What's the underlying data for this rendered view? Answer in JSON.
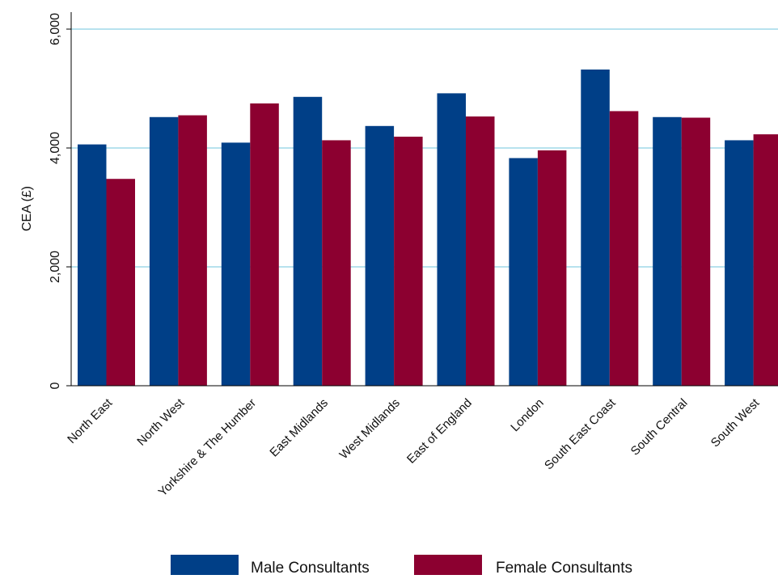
{
  "chart_data": {
    "type": "bar",
    "title": "",
    "xlabel": "",
    "ylabel": "CEA (£)",
    "ylim": [
      0,
      6000
    ],
    "yticks": [
      0,
      2000,
      4000,
      6000
    ],
    "ytick_labels": [
      "0",
      "2,000",
      "4,000",
      "6,000"
    ],
    "grid": true,
    "legend_position": "bottom",
    "categories": [
      "North East",
      "North West",
      "Yorkshire & The Humber",
      "East Midlands",
      "West Midlands",
      "East of England",
      "London",
      "South East Coast",
      "South Central",
      "South West"
    ],
    "series": [
      {
        "name": "Male Consultants",
        "color": "#003f87",
        "values": [
          4060,
          4520,
          4090,
          4860,
          4370,
          4920,
          3830,
          5320,
          4520,
          4130
        ]
      },
      {
        "name": "Female Consultants",
        "color": "#8c0030",
        "values": [
          3480,
          4550,
          4750,
          4130,
          4190,
          4530,
          3960,
          4620,
          4510,
          4230
        ]
      }
    ],
    "grid_color": "#6fc6dc"
  }
}
